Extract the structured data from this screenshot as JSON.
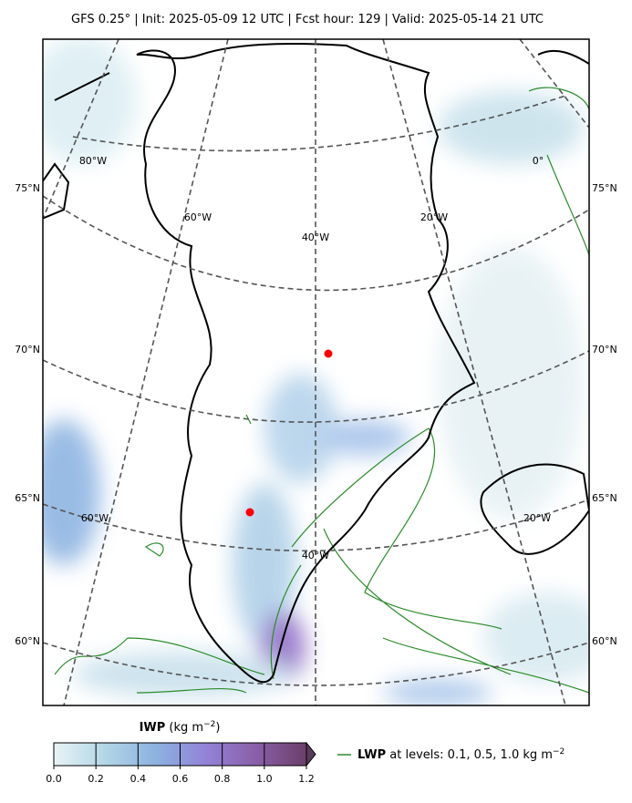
{
  "header": {
    "title": "GFS 0.25$^\\circ$  |  Init: 2025-05-09 12 UTC  |  Fcst hour: 129  |  Valid: 2025-05-14 21 UTC"
  },
  "map": {
    "lat_labels": [
      "75°N",
      "70°N",
      "65°N",
      "60°N"
    ],
    "lon_labels": [
      "80°W",
      "0°",
      "60°W",
      "20°W",
      "40°W",
      "60°W",
      "20°W",
      "40°W"
    ]
  },
  "colorbar": {
    "label_bold": "IWP",
    "label_unit": "(kg m",
    "label_exp": "−2",
    "label_close": ")",
    "ticks": [
      "0.0",
      "0.2",
      "0.4",
      "0.6",
      "0.8",
      "1.0",
      "1.2"
    ]
  },
  "legend": {
    "label_bold": "LWP",
    "label_text": " at levels: 0.1, 0.5, 1.0  kg m",
    "label_exp": "−2"
  }
}
